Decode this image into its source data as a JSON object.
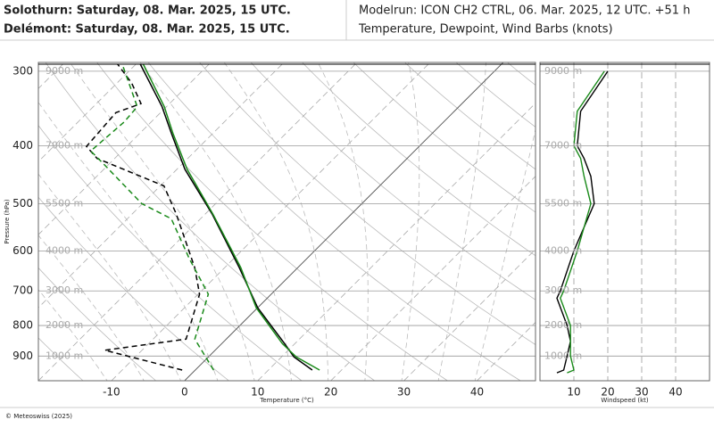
{
  "header": {
    "station_1": "Solothurn: Saturday, 08. Mar. 2025, 15 UTC.",
    "station_1_color": "#000000",
    "station_2": "Delémont: Saturday, 08. Mar. 2025, 15 UTC.",
    "station_2_color": "#1a8a1a",
    "model_run": "Modelrun: ICON CH2 CTRL, 06. Mar. 2025, 12 UTC. +51 h",
    "description": "Temperature, Dewpoint, Wind Barbs (knots)"
  },
  "footer": "© Meteoswiss (2025)",
  "chart_data": [
    {
      "type": "skewt",
      "x_label": "Temperature (°C)",
      "y_label": "Pressure (hPa)",
      "xlim": [
        -20,
        48
      ],
      "xticks": [
        -10,
        0,
        10,
        20,
        30,
        40
      ],
      "ylim": [
        990,
        290
      ],
      "yticks": [
        300,
        400,
        500,
        600,
        700,
        800,
        900
      ],
      "altitude_labels": [
        "9000 m",
        "7000 m",
        "5500 m",
        "4000 m",
        "3000 m",
        "2000 m",
        "1000 m"
      ],
      "grid": true,
      "series": [
        {
          "color": "#000000",
          "pressure": [
            950,
            903,
            858,
            747,
            640,
            520,
            438,
            381,
            344,
            292
          ],
          "temperature": [
            16.0,
            11.7,
            8.6,
            0.0,
            -8.0,
            -19.1,
            -28.9,
            -35.7,
            -40.6,
            -49.4
          ],
          "dewpoint_pressure": [
            950,
            880,
            843,
            709,
            640,
            520,
            467,
            420,
            401,
            352,
            340,
            314,
            292
          ],
          "dewpoint": [
            -1.8,
            -15.1,
            -5.5,
            -9.8,
            -14.1,
            -24.0,
            -29.5,
            -42.4,
            -45.5,
            -46.1,
            -43.9,
            -48.0,
            -52.5
          ]
        },
        {
          "color": "#1a8a1a",
          "pressure": [
            950,
            903,
            858,
            747,
            640,
            520,
            438,
            381,
            344,
            292
          ],
          "temperature": [
            17.0,
            12.0,
            8.3,
            -0.2,
            -7.8,
            -19.0,
            -28.6,
            -35.5,
            -40.3,
            -49.0
          ],
          "dewpoint_pressure": [
            950,
            843,
            709,
            619,
            530,
            500,
            430,
            408,
            365,
            344,
            293
          ],
          "dewpoint": [
            2.5,
            -4.3,
            -8.6,
            -16.0,
            -24.0,
            -30.1,
            -40.6,
            -44.3,
            -43.7,
            -44.0,
            -51.7
          ]
        }
      ]
    },
    {
      "type": "wind",
      "x_label": "Windspeed (kt)",
      "xlim": [
        0,
        50
      ],
      "xticks": [
        10,
        20,
        30,
        40
      ],
      "ylim": [
        990,
        290
      ],
      "yticks": [
        300,
        400,
        500,
        600,
        700,
        800,
        900
      ],
      "altitude_labels": [
        "9000 m",
        "7000 m",
        "5500 m",
        "4000 m",
        "3000 m",
        "2000 m",
        "1000 m"
      ],
      "series": [
        {
          "color": "#000000",
          "pressure": [
            960,
            950,
            900,
            850,
            800,
            720,
            700,
            600,
            500,
            450,
            420,
            400,
            350,
            300
          ],
          "values": [
            5,
            7,
            8,
            9,
            8,
            5,
            6,
            10,
            16,
            15,
            13,
            11,
            12,
            20
          ]
        },
        {
          "color": "#1a8a1a",
          "pressure": [
            960,
            950,
            900,
            850,
            800,
            720,
            700,
            600,
            500,
            450,
            420,
            400,
            350,
            300
          ],
          "values": [
            8,
            10,
            9,
            9,
            9,
            6,
            7,
            11,
            15,
            13,
            12,
            10,
            11,
            19
          ]
        }
      ]
    }
  ]
}
